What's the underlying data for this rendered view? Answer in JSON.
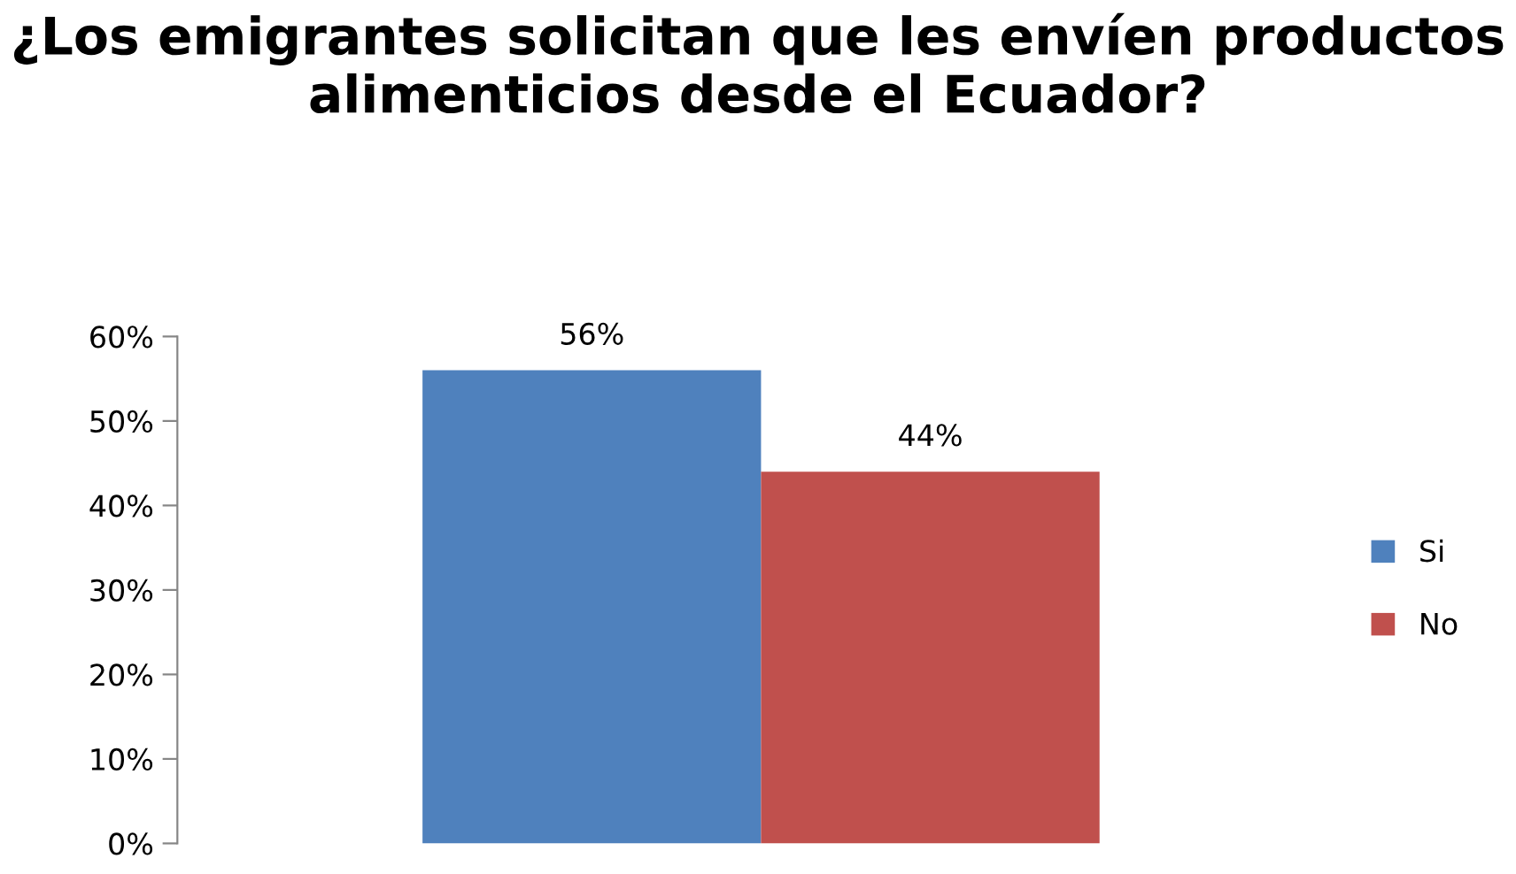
{
  "chart_data": {
    "type": "bar",
    "title": "¿Los emigrantes solicitan que les envíen productos alimenticios desde el Ecuador?",
    "categories": [
      null
    ],
    "series": [
      {
        "name": "Si",
        "color": "#4f81bd",
        "values": [
          56
        ],
        "value_labels": [
          "56%"
        ]
      },
      {
        "name": "No",
        "color": "#c0504d",
        "values": [
          44
        ],
        "value_labels": [
          "44%"
        ]
      }
    ],
    "ylim": [
      0,
      60
    ],
    "yticks": [
      {
        "value": 0,
        "label": "0%"
      },
      {
        "value": 10,
        "label": "10%"
      },
      {
        "value": 20,
        "label": "20%"
      },
      {
        "value": 30,
        "label": "30%"
      },
      {
        "value": 40,
        "label": "40%"
      },
      {
        "value": 50,
        "label": "50%"
      },
      {
        "value": 60,
        "label": "60%"
      }
    ],
    "grid": false,
    "legend": "right"
  }
}
